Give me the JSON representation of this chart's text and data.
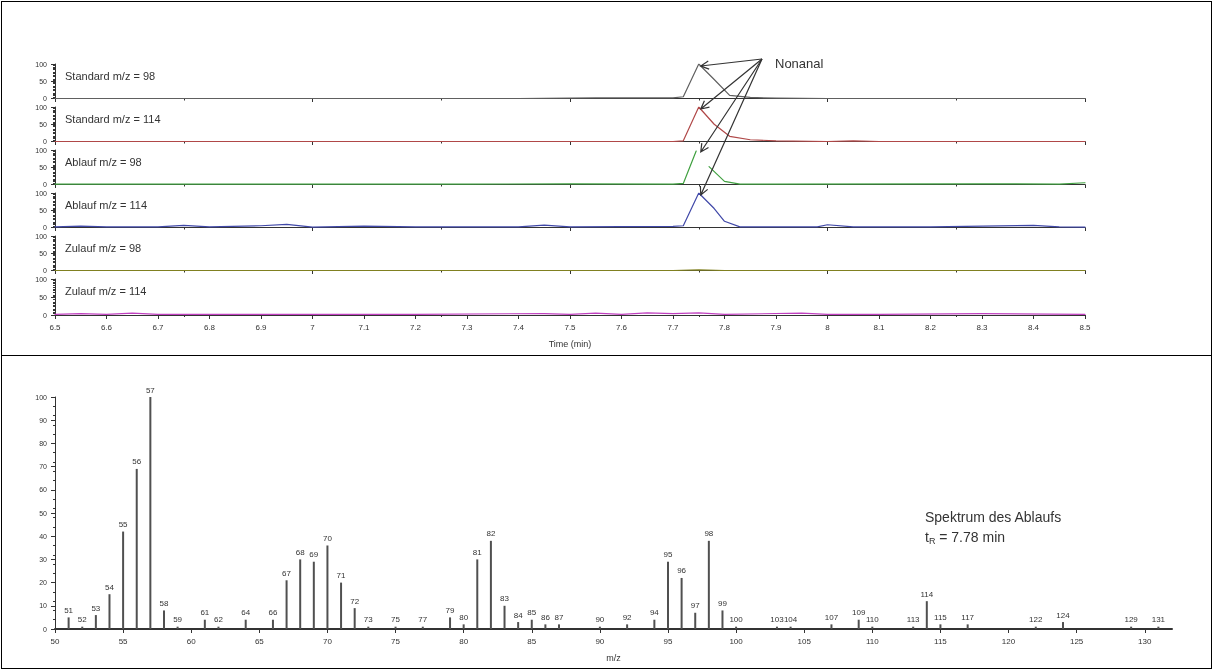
{
  "chart_data": [
    {
      "type": "line",
      "title": "Standard m/z = 98",
      "annotations": [
        {
          "text": "Nonanal",
          "x": 7.75,
          "y": 100
        }
      ],
      "xlim": [
        6.5,
        8.5
      ],
      "ylim": [
        0,
        100
      ],
      "yticks": [
        0,
        50,
        100
      ],
      "tick_labels": "y",
      "marker": "none",
      "series": [
        {
          "color": "#606060",
          "x": [
            6.5,
            7.0,
            7.4,
            7.55,
            7.6,
            7.7,
            7.72,
            7.75,
            7.78,
            7.81,
            7.85,
            7.9,
            8.0,
            8.5
          ],
          "values": [
            0,
            0,
            0,
            2,
            2,
            2,
            5,
            100,
            55,
            9,
            3,
            1,
            0,
            0
          ]
        }
      ]
    },
    {
      "type": "line",
      "title": "Standard m/z = 114",
      "xlim": [
        6.5,
        8.5
      ],
      "ylim": [
        0,
        100
      ],
      "yticks": [
        0,
        50,
        100
      ],
      "tick_labels": "y",
      "marker": "none",
      "series": [
        {
          "color": "#b04848",
          "x": [
            6.5,
            7.0,
            7.5,
            7.7,
            7.72,
            7.75,
            7.78,
            7.81,
            7.85,
            7.9,
            8.0,
            8.05,
            8.1,
            8.5
          ],
          "values": [
            0,
            0,
            0,
            0,
            2,
            100,
            50,
            15,
            5,
            2,
            0,
            2,
            0,
            0
          ]
        }
      ]
    },
    {
      "type": "line",
      "title": "Ablauf m/z = 98",
      "xlim": [
        6.5,
        8.5
      ],
      "ylim": [
        0,
        100
      ],
      "yticks": [
        0,
        50,
        100
      ],
      "tick_labels": "y",
      "marker": "none",
      "series": [
        {
          "color": "#40a040",
          "x": [
            6.5,
            6.8,
            7.0,
            7.3,
            7.5,
            7.7,
            7.72,
            7.745,
            7.76,
            7.77,
            7.8,
            7.83,
            7.9,
            8.3,
            8.45,
            8.5
          ],
          "values": [
            1,
            1,
            1,
            1,
            2,
            1,
            3,
            97,
            null,
            52,
            9,
            1,
            1,
            2,
            1,
            5
          ]
        }
      ]
    },
    {
      "type": "line",
      "title": "Ablauf m/z = 114",
      "xlim": [
        6.5,
        8.5
      ],
      "ylim": [
        0,
        100
      ],
      "yticks": [
        0,
        50,
        100
      ],
      "tick_labels": "y",
      "marker": "none",
      "series": [
        {
          "color": "#4048a8",
          "x": [
            6.5,
            6.55,
            6.6,
            6.7,
            6.75,
            6.8,
            6.9,
            6.95,
            7.0,
            7.1,
            7.2,
            7.4,
            7.45,
            7.5,
            7.7,
            7.72,
            7.75,
            7.78,
            7.8,
            7.83,
            7.9,
            7.98,
            8.0,
            8.05,
            8.2,
            8.4,
            8.45,
            8.5
          ],
          "values": [
            2,
            4,
            2,
            2,
            6,
            2,
            5,
            9,
            1,
            4,
            2,
            2,
            7,
            2,
            3,
            5,
            100,
            55,
            18,
            2,
            2,
            2,
            8,
            2,
            2,
            6,
            2,
            1
          ]
        }
      ]
    },
    {
      "type": "line",
      "title": "Zulauf m/z = 98",
      "xlim": [
        6.5,
        8.5
      ],
      "ylim": [
        0,
        100
      ],
      "yticks": [
        0,
        50,
        100
      ],
      "tick_labels": "y",
      "marker": "none",
      "series": [
        {
          "color": "#808020",
          "x": [
            6.5,
            7.7,
            7.75,
            7.8,
            8.5
          ],
          "values": [
            0,
            0,
            2,
            0,
            0
          ]
        }
      ]
    },
    {
      "type": "line",
      "title": "Zulauf m/z = 114",
      "xlabel": "Time (min)",
      "xlim": [
        6.5,
        8.5
      ],
      "xticks": [
        6.5,
        6.6,
        6.7,
        6.8,
        6.9,
        7.0,
        7.1,
        7.2,
        7.3,
        7.4,
        7.5,
        7.6,
        7.7,
        7.8,
        7.9,
        8.0,
        8.1,
        8.2,
        8.3,
        8.4,
        8.5
      ],
      "ylim": [
        0,
        100
      ],
      "yticks": [
        0,
        50,
        100
      ],
      "marker": "none",
      "series": [
        {
          "color": "#c040c0",
          "x": [
            6.5,
            6.55,
            6.6,
            6.65,
            6.7,
            7.0,
            7.2,
            7.45,
            7.5,
            7.55,
            7.6,
            7.65,
            7.7,
            7.75,
            7.8,
            7.95,
            8.0,
            8.1,
            8.3,
            8.5
          ],
          "values": [
            2,
            4,
            2,
            5,
            2,
            2,
            2,
            4,
            2,
            5,
            2,
            6,
            4,
            6,
            2,
            5,
            2,
            2,
            4,
            2
          ]
        }
      ]
    },
    {
      "type": "bar",
      "xlabel": "m/z",
      "annotations": [
        "Spektrum des Ablaufs",
        "t$_{R}$ = 7.78 min",
        {
          "text": "51",
          "x": 51,
          "y": 5
        },
        {
          "text": "52",
          "x": 52,
          "y": 1
        },
        {
          "text": "53",
          "x": 53,
          "y": 6
        },
        {
          "text": "54",
          "x": 54,
          "y": 15
        },
        {
          "text": "55",
          "x": 55,
          "y": 42
        },
        {
          "text": "56",
          "x": 56,
          "y": 69
        },
        {
          "text": "57",
          "x": 57,
          "y": 100
        },
        {
          "text": "58",
          "x": 58,
          "y": 8
        },
        {
          "text": "59",
          "x": 59,
          "y": 1
        },
        {
          "text": "61",
          "x": 61,
          "y": 4
        },
        {
          "text": "62",
          "x": 62,
          "y": 1
        },
        {
          "text": "64",
          "x": 64,
          "y": 4
        },
        {
          "text": "66",
          "x": 66,
          "y": 4
        },
        {
          "text": "67",
          "x": 67,
          "y": 21
        },
        {
          "text": "68",
          "x": 68,
          "y": 30
        },
        {
          "text": "69",
          "x": 69,
          "y": 29
        },
        {
          "text": "70",
          "x": 70,
          "y": 36
        },
        {
          "text": "71",
          "x": 71,
          "y": 20
        },
        {
          "text": "72",
          "x": 72,
          "y": 9
        },
        {
          "text": "73",
          "x": 73,
          "y": 1
        },
        {
          "text": "75",
          "x": 75,
          "y": 1
        },
        {
          "text": "77",
          "x": 77,
          "y": 1
        },
        {
          "text": "79",
          "x": 79,
          "y": 5
        },
        {
          "text": "80",
          "x": 80,
          "y": 2
        },
        {
          "text": "81",
          "x": 81,
          "y": 30
        },
        {
          "text": "82",
          "x": 82,
          "y": 38
        },
        {
          "text": "83",
          "x": 83,
          "y": 10
        },
        {
          "text": "84",
          "x": 84,
          "y": 3
        },
        {
          "text": "85",
          "x": 85,
          "y": 4
        },
        {
          "text": "86",
          "x": 86,
          "y": 2
        },
        {
          "text": "87",
          "x": 87,
          "y": 2
        },
        {
          "text": "90",
          "x": 90,
          "y": 1
        },
        {
          "text": "92",
          "x": 92,
          "y": 2
        },
        {
          "text": "94",
          "x": 94,
          "y": 4
        },
        {
          "text": "95",
          "x": 95,
          "y": 29
        },
        {
          "text": "96",
          "x": 96,
          "y": 22
        },
        {
          "text": "97",
          "x": 97,
          "y": 7
        },
        {
          "text": "98",
          "x": 98,
          "y": 38
        },
        {
          "text": "99",
          "x": 99,
          "y": 8
        },
        {
          "text": "100",
          "x": 100,
          "y": 1
        },
        {
          "text": "103",
          "x": 103,
          "y": 1
        },
        {
          "text": "104",
          "x": 104,
          "y": 1
        },
        {
          "text": "107",
          "x": 107,
          "y": 2
        },
        {
          "text": "109",
          "x": 109,
          "y": 4
        },
        {
          "text": "110",
          "x": 110,
          "y": 1
        },
        {
          "text": "113",
          "x": 113,
          "y": 1
        },
        {
          "text": "114",
          "x": 114,
          "y": 12
        },
        {
          "text": "115",
          "x": 115,
          "y": 2
        },
        {
          "text": "117",
          "x": 117,
          "y": 2
        },
        {
          "text": "122",
          "x": 122,
          "y": 1
        },
        {
          "text": "124",
          "x": 124,
          "y": 3
        },
        {
          "text": "129",
          "x": 129,
          "y": 1
        },
        {
          "text": "131",
          "x": 131,
          "y": 1
        }
      ],
      "xlim": [
        50,
        132
      ],
      "xticks": [
        50,
        55,
        60,
        65,
        70,
        75,
        80,
        85,
        90,
        95,
        100,
        105,
        110,
        115,
        120,
        125,
        130
      ],
      "ylim": [
        0,
        100
      ],
      "yticks": [
        0,
        10,
        20,
        30,
        40,
        50,
        60,
        70,
        80,
        90,
        100
      ],
      "series": [
        {
          "color": "#505050",
          "x": [
            51,
            52,
            53,
            54,
            55,
            56,
            57,
            58,
            59,
            61,
            62,
            64,
            66,
            67,
            68,
            69,
            70,
            71,
            72,
            73,
            75,
            77,
            79,
            80,
            81,
            82,
            83,
            84,
            85,
            86,
            87,
            90,
            92,
            94,
            95,
            96,
            97,
            98,
            99,
            100,
            103,
            104,
            107,
            109,
            110,
            113,
            114,
            115,
            117,
            122,
            124,
            129,
            131
          ],
          "values": [
            5,
            1,
            6,
            15,
            42,
            69,
            100,
            8,
            1,
            4,
            1,
            4,
            4,
            21,
            30,
            29,
            36,
            20,
            9,
            1,
            1,
            1,
            5,
            2,
            30,
            38,
            10,
            3,
            4,
            2,
            2,
            1,
            2,
            4,
            29,
            22,
            7,
            38,
            8,
            1,
            1,
            1,
            2,
            4,
            1,
            1,
            12,
            2,
            2,
            1,
            3,
            1,
            1
          ]
        }
      ]
    }
  ]
}
